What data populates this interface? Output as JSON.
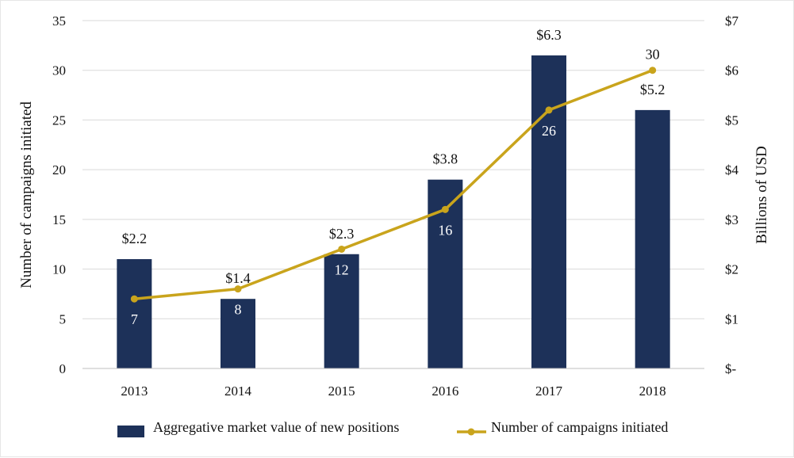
{
  "chart_data": {
    "type": "bar",
    "categories": [
      "2013",
      "2014",
      "2015",
      "2016",
      "2017",
      "2018"
    ],
    "series": [
      {
        "name": "Aggregative market value of new positions",
        "type": "bar",
        "axis": "right",
        "values": [
          2.2,
          1.4,
          2.3,
          3.8,
          6.3,
          5.2
        ],
        "labels": [
          "$2.2",
          "$1.4",
          "$2.3",
          "$3.8",
          "$6.3",
          "$5.2"
        ],
        "color": "#1d3159"
      },
      {
        "name": "Number of campaigns initiated",
        "type": "line",
        "axis": "left",
        "values": [
          7,
          8,
          12,
          16,
          26,
          30
        ],
        "labels": [
          "7",
          "8",
          "12",
          "16",
          "26",
          "30"
        ],
        "color": "#c9a41c"
      }
    ],
    "ylabel": "Number of campaigns initiated",
    "ylim": [
      0,
      35
    ],
    "yticks": [
      "0",
      "5",
      "10",
      "15",
      "20",
      "25",
      "30",
      "35"
    ],
    "y2label": "Billions of USD",
    "y2lim": [
      0,
      7
    ],
    "y2ticks": [
      "$-",
      "$1",
      "$2",
      "$3",
      "$4",
      "$5",
      "$6",
      "$7"
    ],
    "grid": true,
    "legend": "bottom"
  }
}
